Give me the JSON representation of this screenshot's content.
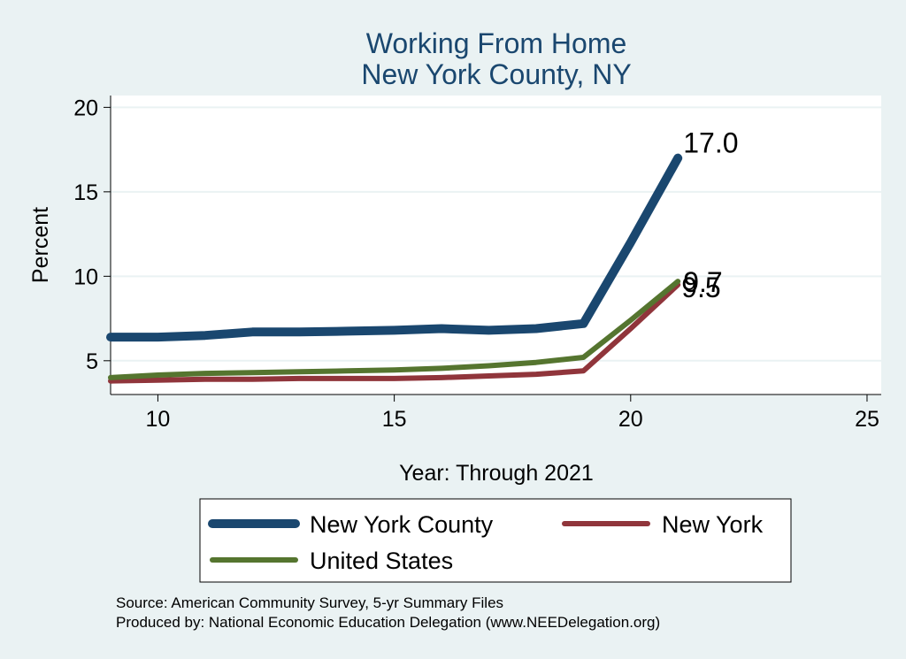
{
  "chart_data": {
    "type": "line",
    "title": [
      "Working From Home",
      "New York County, NY"
    ],
    "xlabel": "Year: Through 2021",
    "ylabel": "Percent",
    "xlim": [
      9,
      25.3
    ],
    "ylim": [
      3,
      20.7
    ],
    "xticks": [
      10,
      15,
      20,
      25
    ],
    "yticks": [
      5,
      10,
      15,
      20
    ],
    "grid": "horizontal",
    "legend_position": "bottom",
    "notes": [
      "Source: American Community Survey, 5-yr Summary Files",
      "Produced by: National Economic Education Delegation (www.NEEDelegation.org)"
    ],
    "x": [
      9,
      10,
      11,
      12,
      13,
      14,
      15,
      16,
      17,
      18,
      19,
      20,
      21
    ],
    "series": [
      {
        "name": "New York County",
        "color": "#1a476f",
        "values": [
          6.4,
          6.4,
          6.5,
          6.7,
          6.7,
          6.75,
          6.8,
          6.9,
          6.8,
          6.9,
          7.2,
          12.0,
          17.0
        ],
        "end_label": "17.0"
      },
      {
        "name": "New York",
        "color": "#90353b",
        "values": [
          3.8,
          3.85,
          3.9,
          3.9,
          3.95,
          3.95,
          3.95,
          4.0,
          4.1,
          4.2,
          4.4,
          6.9,
          9.5
        ],
        "end_label": "9.5"
      },
      {
        "name": "United States",
        "color": "#55752f",
        "values": [
          4.0,
          4.15,
          4.25,
          4.3,
          4.35,
          4.4,
          4.45,
          4.55,
          4.7,
          4.9,
          5.2,
          7.4,
          9.7
        ],
        "end_label": "9.7"
      }
    ]
  }
}
